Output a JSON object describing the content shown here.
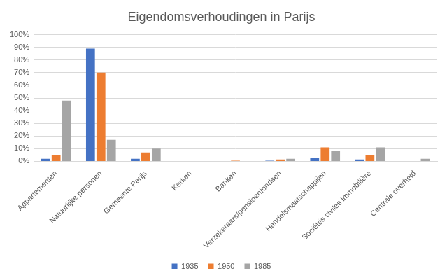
{
  "chart_data": {
    "type": "bar",
    "title": "Eigendomsverhoudingen in Parijs",
    "categories": [
      "Appartementen",
      "Natuurlijke personen",
      "Gemeente Parijs",
      "Kerken",
      "Banken",
      "Verzekeraars/pensioenfondsen",
      "Handelsmaatschappijen",
      "Sociétés civiles immobilière",
      "Centrale overheid"
    ],
    "series": [
      {
        "name": "1935",
        "color": "#4472c4",
        "values": [
          2,
          89,
          2,
          0,
          0,
          0.5,
          3,
          1.5,
          0
        ]
      },
      {
        "name": "1950",
        "color": "#ed7d31",
        "values": [
          5,
          70,
          7,
          0,
          0.5,
          1.5,
          11,
          5,
          0
        ]
      },
      {
        "name": "1985",
        "color": "#a5a5a5",
        "values": [
          48,
          17,
          10,
          0.3,
          0.3,
          2,
          8,
          11,
          2
        ]
      }
    ],
    "ylim": [
      0,
      100
    ],
    "yticks": [
      {
        "value": 0,
        "label": "0%"
      },
      {
        "value": 10,
        "label": "10%"
      },
      {
        "value": 20,
        "label": "20%"
      },
      {
        "value": 30,
        "label": "30%"
      },
      {
        "value": 40,
        "label": "40%"
      },
      {
        "value": 50,
        "label": "50%"
      },
      {
        "value": 60,
        "label": "60%"
      },
      {
        "value": 70,
        "label": "70%"
      },
      {
        "value": 80,
        "label": "80%"
      },
      {
        "value": 90,
        "label": "90%"
      },
      {
        "value": 100,
        "label": "100%"
      }
    ],
    "grid": true,
    "legend": "bottom"
  }
}
